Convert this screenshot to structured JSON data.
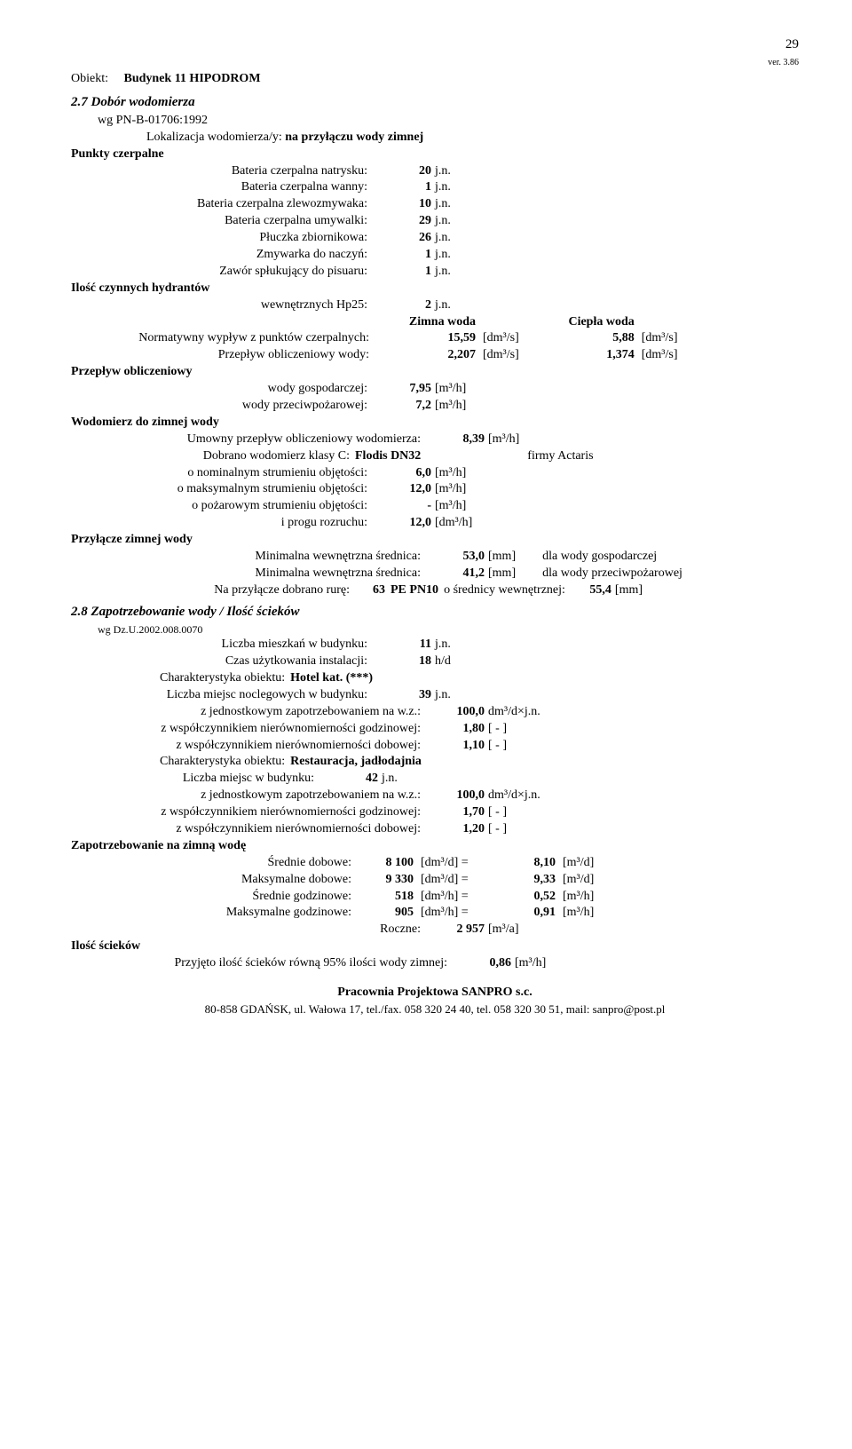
{
  "page": {
    "number": "29",
    "ver": "ver. 3.86"
  },
  "object": {
    "label": "Obiekt:",
    "name": "Budynek 11 HIPODROM"
  },
  "s27": {
    "title": "2.7 Dobór wodomierza",
    "wg": "wg PN-B-01706:1992",
    "loc_label": "Lokalizacja wodomierza/y:",
    "loc_val": "na przyłączu wody zimnej",
    "punkty": "Punkty czerpalne",
    "rows": [
      {
        "k": "Bateria czerpalna natrysku:",
        "v": "20",
        "u": "j.n."
      },
      {
        "k": "Bateria czerpalna wanny:",
        "v": "1",
        "u": "j.n."
      },
      {
        "k": "Bateria czerpalna zlewozmywaka:",
        "v": "10",
        "u": "j.n."
      },
      {
        "k": "Bateria czerpalna umywalki:",
        "v": "29",
        "u": "j.n."
      },
      {
        "k": "Płuczka zbiornikowa:",
        "v": "26",
        "u": "j.n."
      },
      {
        "k": "Zmywarka do naczyń:",
        "v": "1",
        "u": "j.n."
      },
      {
        "k": "Zawór spłukujący do pisuaru:",
        "v": "1",
        "u": "j.n."
      }
    ],
    "hydrant_label": "Ilość czynnych hydrantów",
    "hydrant_row": {
      "k": "wewnętrznych Hp25:",
      "v": "2",
      "u": "j.n."
    },
    "colhead": {
      "z": "Zimna woda",
      "c": "Ciepła woda"
    },
    "norm": {
      "k": "Normatywny wypływ z punktów czerpalnych:",
      "v1": "15,59",
      "u1": "[dm³/s]",
      "v2": "5,88",
      "u2": "[dm³/s]"
    },
    "przepl": {
      "k": "Przepływ obliczeniowy wody:",
      "v1": "2,207",
      "u1": "[dm³/s]",
      "v2": "1,374",
      "u2": "[dm³/s]"
    },
    "po_label": "Przepływ obliczeniowy",
    "po_rows": [
      {
        "k": "wody gospodarczej:",
        "v": "7,95",
        "u": "[m³/h]"
      },
      {
        "k": "wody przeciwpożarowej:",
        "v": "7,2",
        "u": "[m³/h]"
      }
    ],
    "wodomierz_label": "Wodomierz do zimnej wody",
    "umowny": {
      "k": "Umowny przepływ obliczeniowy wodomierza:",
      "v": "8,39",
      "u": "[m³/h]"
    },
    "dobrano": {
      "k": "Dobrano wodomierz klasy C:",
      "v": "Flodis DN32",
      "firm": "firmy Actaris"
    },
    "wod_rows": [
      {
        "k": "o nominalnym strumieniu objętości:",
        "v": "6,0",
        "u": "[m³/h]"
      },
      {
        "k": "o maksymalnym strumieniu objętości:",
        "v": "12,0",
        "u": "[m³/h]"
      },
      {
        "k": "o pożarowym strumieniu objętości:",
        "v": "-",
        "u": "[m³/h]"
      },
      {
        "k": "i progu rozruchu:",
        "v": "12,0",
        "u": "[dm³/h]"
      }
    ],
    "przyl_label": "Przyłącze zimnej wody",
    "min1": {
      "k": "Minimalna wewnętrzna średnica:",
      "v": "53,0",
      "u": "[mm]",
      "e": "dla wody gospodarczej"
    },
    "min2": {
      "k": "Minimalna wewnętrzna średnica:",
      "v": "41,2",
      "u": "[mm]",
      "e": "dla wody przeciwpożarowej"
    },
    "rura": {
      "k": "Na przyłącze dobrano rurę:",
      "v": "63",
      "t": "PE PN10",
      "mid": "o średnicy wewnętrznej:",
      "d": "55,4",
      "u": "[mm]"
    }
  },
  "s28": {
    "title": "2.8 Zapotrzebowanie wody / Ilość ścieków",
    "wg": "wg Dz.U.2002.008.0070",
    "rows1": [
      {
        "k": "Liczba mieszkań w budynku:",
        "v": "11",
        "u": "j.n."
      },
      {
        "k": "Czas użytkowania instalacji:",
        "v": "18",
        "u": "h/d"
      }
    ],
    "char1": {
      "k": "Charakterystyka obiektu:",
      "v": "Hotel kat. (***)"
    },
    "nocleg": {
      "k": "Liczba miejsc noclegowych w budynku:",
      "v": "39",
      "u": "j.n."
    },
    "block1": [
      {
        "k": "z jednostkowym zapotrzebowaniem na w.z.:",
        "v": "100,0",
        "u": "dm³/d×j.n."
      },
      {
        "k": "z współczynnikiem nierównomierności godzinowej:",
        "v": "1,80",
        "u": "[ - ]"
      },
      {
        "k": "z współczynnikiem nierównomierności dobowej:",
        "v": "1,10",
        "u": "[ - ]"
      }
    ],
    "char2": {
      "k": "Charakterystyka obiektu:",
      "v": "Restauracja, jadłodajnia"
    },
    "miejsc": {
      "k": "Liczba miejsc w budynku:",
      "v": "42",
      "u": "j.n."
    },
    "block2": [
      {
        "k": "z jednostkowym zapotrzebowaniem na w.z.:",
        "v": "100,0",
        "u": "dm³/d×j.n."
      },
      {
        "k": "z współczynnikiem nierównomierności godzinowej:",
        "v": "1,70",
        "u": "[ - ]"
      },
      {
        "k": "z współczynnikiem nierównomierności dobowej:",
        "v": "1,20",
        "u": "[ - ]"
      }
    ],
    "zap_label": "Zapotrzebowanie na zimną wodę",
    "zap_rows": [
      {
        "k": "Średnie dobowe:",
        "v1": "8 100",
        "u1": "[dm³/d] =",
        "v2": "8,10",
        "u2": "[m³/d]"
      },
      {
        "k": "Maksymalne dobowe:",
        "v1": "9 330",
        "u1": "[dm³/d] =",
        "v2": "9,33",
        "u2": "[m³/d]"
      },
      {
        "k": "Średnie godzinowe:",
        "v1": "518",
        "u1": "[dm³/h] =",
        "v2": "0,52",
        "u2": "[m³/h]"
      },
      {
        "k": "Maksymalne godzinowe:",
        "v1": "905",
        "u1": "[dm³/h] =",
        "v2": "0,91",
        "u2": "[m³/h]"
      }
    ],
    "roczne": {
      "k": "Roczne:",
      "v": "2 957",
      "u": "[m³/a]"
    },
    "sciek_label": "Ilość ścieków",
    "sciek": {
      "k": "Przyjęto ilość ścieków równą 95% ilości wody zimnej:",
      "v": "0,86",
      "u": "[m³/h]"
    }
  },
  "footer": {
    "l1": "Pracownia Projektowa SANPRO s.c.",
    "l2": "80-858 GDAŃSK, ul. Wałowa 17, tel./fax. 058 320 24 40, tel. 058 320 30 51, mail: sanpro@post.pl"
  }
}
